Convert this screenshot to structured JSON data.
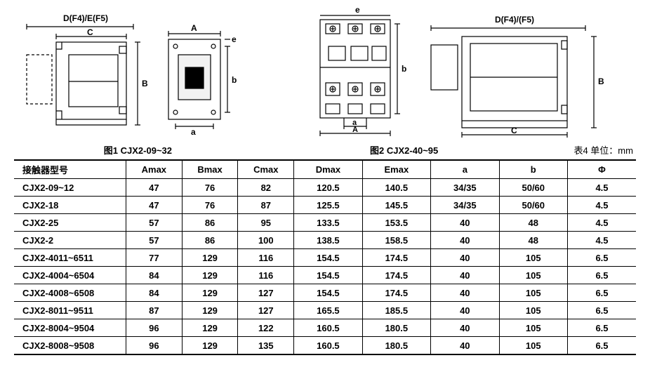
{
  "figures": {
    "fig1": {
      "caption": "图1 CJX2-09~32",
      "top_label": "D(F4)/E(F5)",
      "dim_c": "C",
      "dim_b": "B",
      "dim_a": "A",
      "dim_a_small": "a",
      "dim_b_small": "b",
      "dim_e_small": "e"
    },
    "fig2": {
      "caption": "图2 CJX2-40~95",
      "top_label": "D(F4)/(F5)",
      "dim_c": "C",
      "dim_b": "B",
      "dim_a": "A",
      "dim_a_small": "a",
      "dim_b_small": "b",
      "dim_e_small": "e"
    },
    "stroke": "#000000",
    "stroke_width": 1.2,
    "dash": "4,3"
  },
  "unit_label": "表4 单位：mm",
  "table": {
    "columns": [
      "接触器型号",
      "Amax",
      "Bmax",
      "Cmax",
      "Dmax",
      "Emax",
      "a",
      "b",
      "Φ"
    ],
    "rows": [
      [
        "CJX2-09~12",
        "47",
        "76",
        "82",
        "120.5",
        "140.5",
        "34/35",
        "50/60",
        "4.5"
      ],
      [
        "CJX2-18",
        "47",
        "76",
        "87",
        "125.5",
        "145.5",
        "34/35",
        "50/60",
        "4.5"
      ],
      [
        "CJX2-25",
        "57",
        "86",
        "95",
        "133.5",
        "153.5",
        "40",
        "48",
        "4.5"
      ],
      [
        "CJX2-2",
        "57",
        "86",
        "100",
        "138.5",
        "158.5",
        "40",
        "48",
        "4.5"
      ],
      [
        "CJX2-4011~6511",
        "77",
        "129",
        "116",
        "154.5",
        "174.5",
        "40",
        "105",
        "6.5"
      ],
      [
        "CJX2-4004~6504",
        "84",
        "129",
        "116",
        "154.5",
        "174.5",
        "40",
        "105",
        "6.5"
      ],
      [
        "CJX2-4008~6508",
        "84",
        "129",
        "127",
        "154.5",
        "174.5",
        "40",
        "105",
        "6.5"
      ],
      [
        "CJX2-8011~9511",
        "87",
        "129",
        "127",
        "165.5",
        "185.5",
        "40",
        "105",
        "6.5"
      ],
      [
        "CJX2-8004~9504",
        "96",
        "129",
        "122",
        "160.5",
        "180.5",
        "40",
        "105",
        "6.5"
      ],
      [
        "CJX2-8008~9508",
        "96",
        "129",
        "135",
        "160.5",
        "180.5",
        "40",
        "105",
        "6.5"
      ]
    ]
  }
}
